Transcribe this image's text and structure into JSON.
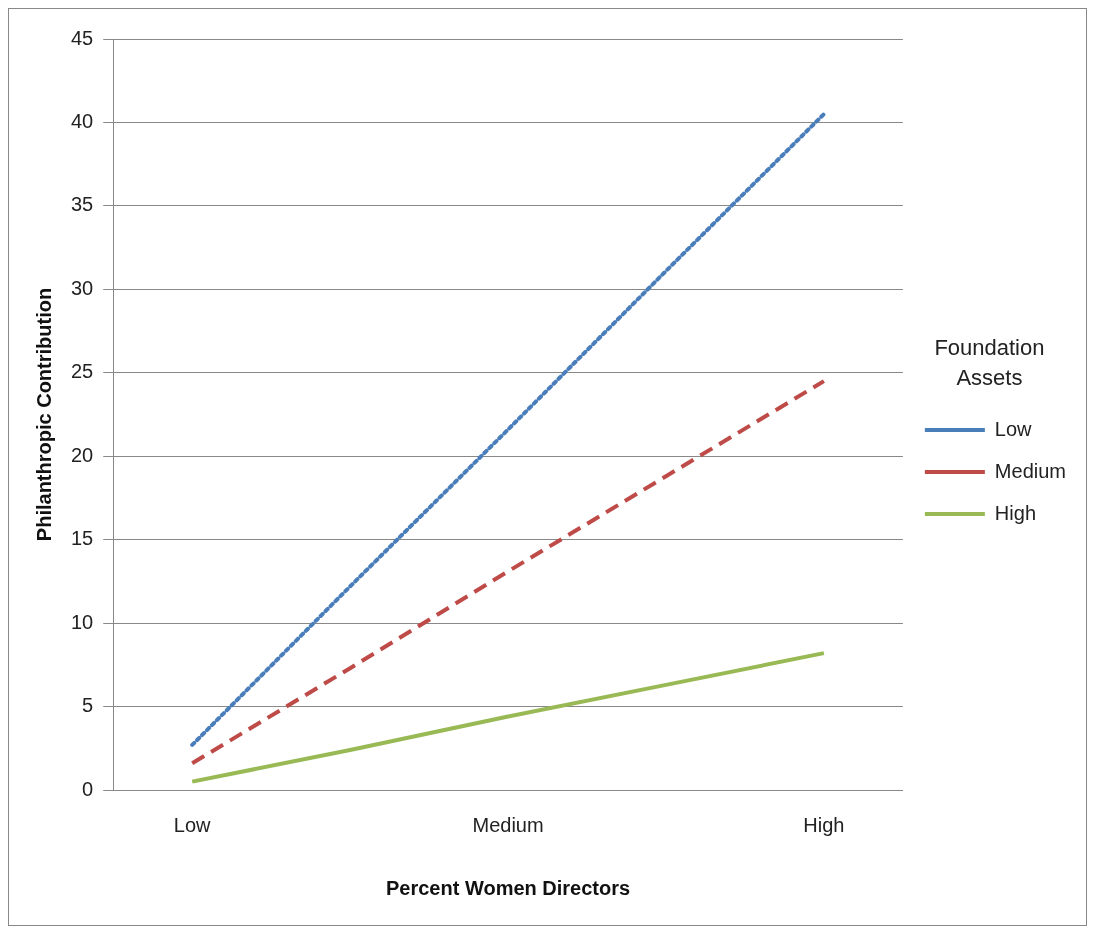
{
  "chart_data": {
    "type": "line",
    "xlabel": "Percent Women Directors",
    "ylabel": "Philanthropic Contribution",
    "legend_title": "Foundation Assets",
    "categories": [
      "Low",
      null,
      "Medium",
      null,
      "High"
    ],
    "series": [
      {
        "name": "Low",
        "color": "#4a7ebb",
        "line_style": "dotted",
        "values": [
          2.7,
          12.2,
          21.6,
          31.1,
          40.5
        ]
      },
      {
        "name": "Medium",
        "color": "#be4b48",
        "line_style": "dashed",
        "values": [
          1.6,
          7.3,
          13.1,
          18.8,
          24.5
        ]
      },
      {
        "name": "High",
        "color": "#98b954",
        "line_style": "solid",
        "values": [
          0.5,
          2.4,
          4.4,
          6.3,
          8.2
        ]
      }
    ],
    "ylim": [
      0,
      45
    ],
    "yticks": [
      0,
      5,
      10,
      15,
      20,
      25,
      30,
      35,
      40,
      45
    ],
    "grid": "y",
    "legend": "right",
    "marker": "none"
  }
}
